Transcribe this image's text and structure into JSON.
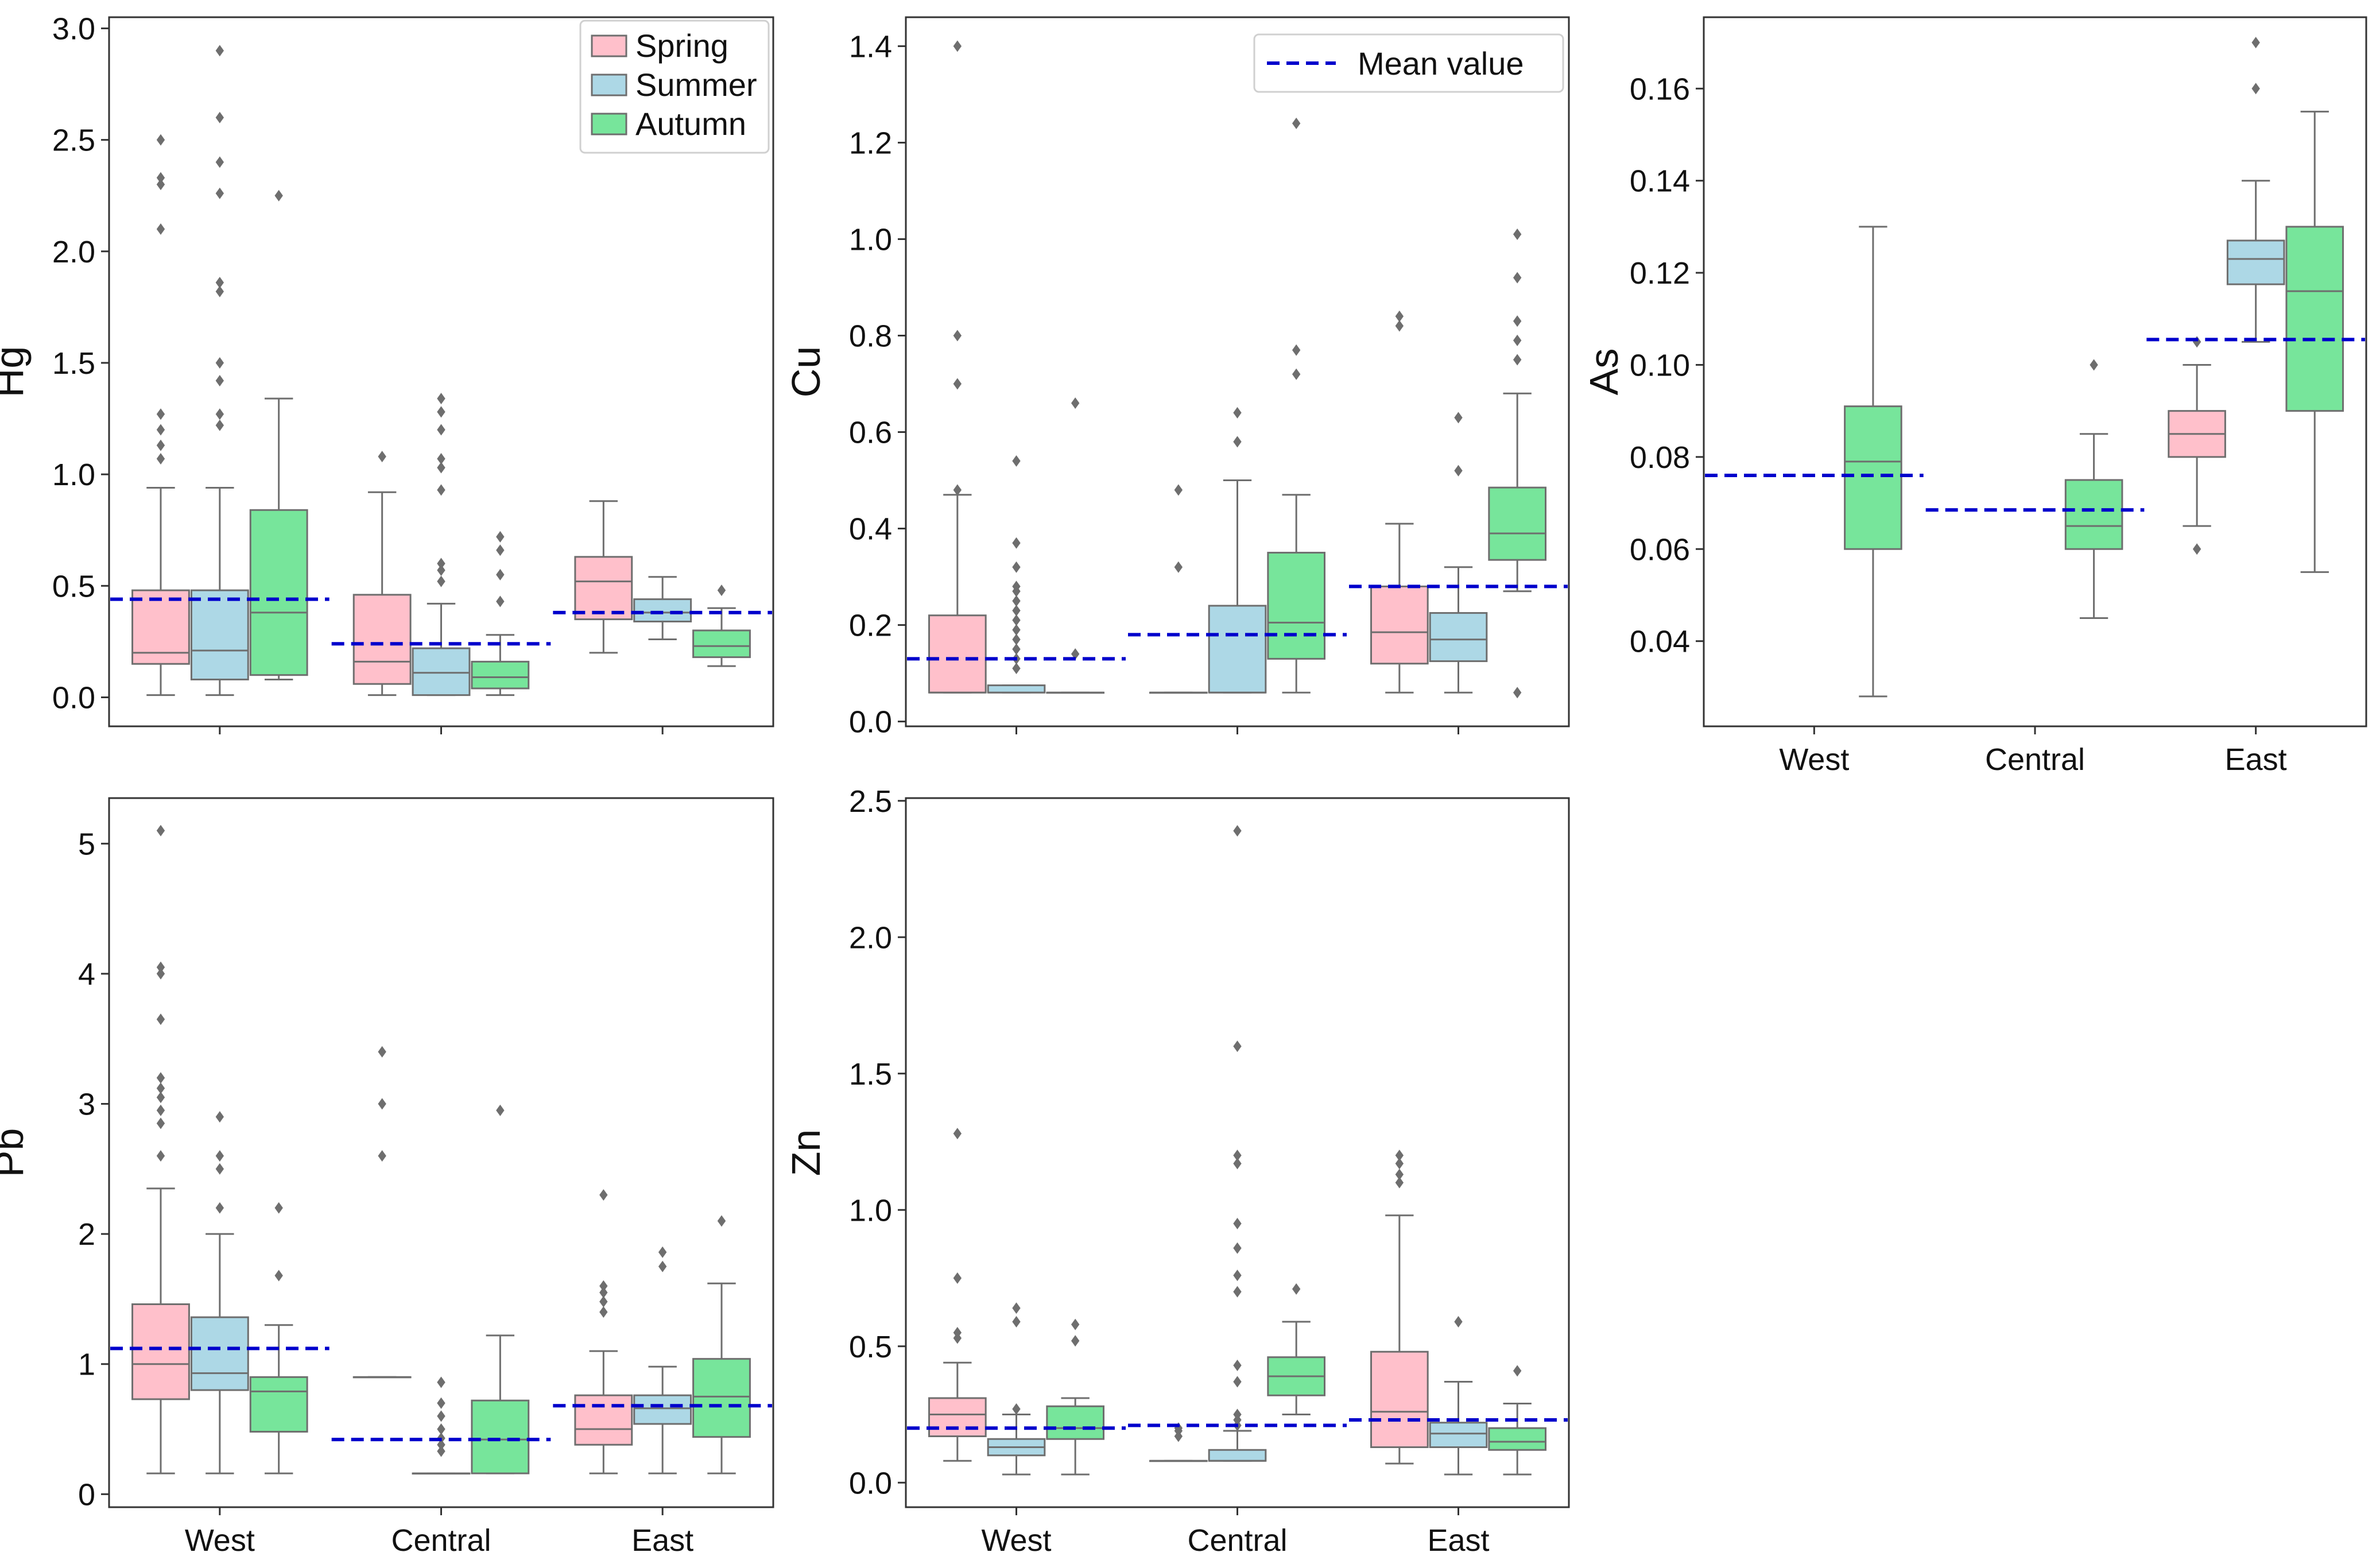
{
  "figure": {
    "legend_seasons": [
      "Spring",
      "Summer",
      "Autumn"
    ],
    "legend_mean": "Mean value",
    "colors": {
      "Spring": "#ffc0cb",
      "Summer": "#add8e6",
      "Autumn": "#77e59b",
      "mean_line": "#0000cc",
      "box_edge": "#6e6e6e",
      "axes": "#333333"
    }
  },
  "chart_data": [
    {
      "type": "box",
      "ylabel": "Hg",
      "categories": [
        "West",
        "Central",
        "East"
      ],
      "show_xticklabels": false,
      "ylim": [
        -0.13,
        3.05
      ],
      "yticks": [
        0.0,
        0.5,
        1.0,
        1.5,
        2.0,
        2.5,
        3.0
      ],
      "ytick_labels": [
        "0.0",
        "0.5",
        "1.0",
        "1.5",
        "2.0",
        "2.5",
        "3.0"
      ],
      "legend": "seasons",
      "boxes": [
        {
          "category": "West",
          "season": "Spring",
          "whislo": 0.01,
          "q1": 0.15,
          "med": 0.2,
          "q3": 0.48,
          "whishi": 0.94,
          "fliers": [
            1.07,
            1.13,
            1.2,
            1.27,
            2.1,
            2.3,
            2.33,
            2.5
          ]
        },
        {
          "category": "West",
          "season": "Summer",
          "whislo": 0.01,
          "q1": 0.08,
          "med": 0.21,
          "q3": 0.48,
          "whishi": 0.94,
          "fliers": [
            1.22,
            1.27,
            1.42,
            1.5,
            1.82,
            1.86,
            2.26,
            2.4,
            2.6,
            2.9
          ]
        },
        {
          "category": "West",
          "season": "Autumn",
          "whislo": 0.08,
          "q1": 0.1,
          "med": 0.38,
          "q3": 0.84,
          "whishi": 1.34,
          "fliers": [
            2.25
          ]
        },
        {
          "category": "Central",
          "season": "Spring",
          "whislo": 0.01,
          "q1": 0.06,
          "med": 0.16,
          "q3": 0.46,
          "whishi": 0.92,
          "fliers": [
            1.08
          ]
        },
        {
          "category": "Central",
          "season": "Summer",
          "whislo": 0.01,
          "q1": 0.01,
          "med": 0.11,
          "q3": 0.22,
          "whishi": 0.42,
          "fliers": [
            0.52,
            0.57,
            0.6,
            0.93,
            1.03,
            1.07,
            1.2,
            1.28,
            1.34
          ]
        },
        {
          "category": "Central",
          "season": "Autumn",
          "whislo": 0.01,
          "q1": 0.04,
          "med": 0.09,
          "q3": 0.16,
          "whishi": 0.28,
          "fliers": [
            0.43,
            0.55,
            0.66,
            0.72
          ]
        },
        {
          "category": "East",
          "season": "Spring",
          "whislo": 0.2,
          "q1": 0.35,
          "med": 0.52,
          "q3": 0.63,
          "whishi": 0.88,
          "fliers": []
        },
        {
          "category": "East",
          "season": "Summer",
          "whislo": 0.26,
          "q1": 0.34,
          "med": 0.38,
          "q3": 0.44,
          "whishi": 0.54,
          "fliers": []
        },
        {
          "category": "East",
          "season": "Autumn",
          "whislo": 0.14,
          "q1": 0.18,
          "med": 0.23,
          "q3": 0.3,
          "whishi": 0.4,
          "fliers": [
            0.48
          ]
        }
      ],
      "means": [
        {
          "category": "West",
          "value": 0.44
        },
        {
          "category": "Central",
          "value": 0.24
        },
        {
          "category": "East",
          "value": 0.38
        }
      ]
    },
    {
      "type": "box",
      "ylabel": "Cu",
      "categories": [
        "West",
        "Central",
        "East"
      ],
      "show_xticklabels": false,
      "ylim": [
        -0.01,
        1.46
      ],
      "yticks": [
        0.0,
        0.2,
        0.4,
        0.6,
        0.8,
        1.0,
        1.2,
        1.4
      ],
      "ytick_labels": [
        "0.0",
        "0.2",
        "0.4",
        "0.6",
        "0.8",
        "1.0",
        "1.2",
        "1.4"
      ],
      "legend": "mean",
      "boxes": [
        {
          "category": "West",
          "season": "Spring",
          "whislo": 0.06,
          "q1": 0.06,
          "med": 0.06,
          "q3": 0.22,
          "whishi": 0.47,
          "fliers": [
            0.48,
            0.7,
            0.8,
            1.4
          ]
        },
        {
          "category": "West",
          "season": "Summer",
          "whislo": 0.06,
          "q1": 0.06,
          "med": 0.06,
          "q3": 0.075,
          "whishi": 0.075,
          "fliers": [
            0.11,
            0.13,
            0.15,
            0.17,
            0.19,
            0.21,
            0.23,
            0.25,
            0.27,
            0.28,
            0.32,
            0.37,
            0.54
          ]
        },
        {
          "category": "West",
          "season": "Autumn",
          "whislo": 0.06,
          "q1": 0.06,
          "med": 0.06,
          "q3": 0.06,
          "whishi": 0.06,
          "fliers": [
            0.14,
            0.66
          ]
        },
        {
          "category": "Central",
          "season": "Spring",
          "whislo": 0.06,
          "q1": 0.06,
          "med": 0.06,
          "q3": 0.06,
          "whishi": 0.06,
          "fliers": [
            0.32,
            0.48
          ]
        },
        {
          "category": "Central",
          "season": "Summer",
          "whislo": 0.06,
          "q1": 0.06,
          "med": 0.06,
          "q3": 0.24,
          "whishi": 0.5,
          "fliers": [
            0.58,
            0.64
          ]
        },
        {
          "category": "Central",
          "season": "Autumn",
          "whislo": 0.06,
          "q1": 0.13,
          "med": 0.205,
          "q3": 0.35,
          "whishi": 0.47,
          "fliers": [
            0.72,
            0.77,
            1.24
          ]
        },
        {
          "category": "East",
          "season": "Spring",
          "whislo": 0.06,
          "q1": 0.12,
          "med": 0.185,
          "q3": 0.28,
          "whishi": 0.41,
          "fliers": [
            0.82,
            0.84
          ]
        },
        {
          "category": "East",
          "season": "Summer",
          "whislo": 0.06,
          "q1": 0.125,
          "med": 0.17,
          "q3": 0.225,
          "whishi": 0.32,
          "fliers": [
            0.52,
            0.63
          ]
        },
        {
          "category": "East",
          "season": "Autumn",
          "whislo": 0.27,
          "q1": 0.335,
          "med": 0.39,
          "q3": 0.485,
          "whishi": 0.68,
          "fliers": [
            0.06,
            0.75,
            0.79,
            0.83,
            0.92,
            1.01
          ]
        }
      ],
      "means": [
        {
          "category": "West",
          "value": 0.13
        },
        {
          "category": "Central",
          "value": 0.18
        },
        {
          "category": "East",
          "value": 0.28
        }
      ]
    },
    {
      "type": "box",
      "ylabel": "As",
      "categories": [
        "West",
        "Central",
        "East"
      ],
      "show_xticklabels": true,
      "ylim": [
        0.0215,
        0.1755
      ],
      "yticks": [
        0.04,
        0.06,
        0.08,
        0.1,
        0.12,
        0.14,
        0.16
      ],
      "ytick_labels": [
        "0.04",
        "0.06",
        "0.08",
        "0.10",
        "0.12",
        "0.14",
        "0.16"
      ],
      "legend": "none",
      "boxes": [
        {
          "category": "West",
          "season": "Autumn",
          "whislo": 0.028,
          "q1": 0.06,
          "med": 0.079,
          "q3": 0.091,
          "whishi": 0.13,
          "fliers": []
        },
        {
          "category": "Central",
          "season": "Autumn",
          "whislo": 0.045,
          "q1": 0.06,
          "med": 0.065,
          "q3": 0.075,
          "whishi": 0.085,
          "fliers": [
            0.1
          ]
        },
        {
          "category": "East",
          "season": "Spring",
          "whislo": 0.065,
          "q1": 0.08,
          "med": 0.085,
          "q3": 0.09,
          "whishi": 0.1,
          "fliers": [
            0.06,
            0.105
          ]
        },
        {
          "category": "East",
          "season": "Summer",
          "whislo": 0.105,
          "q1": 0.1175,
          "med": 0.123,
          "q3": 0.127,
          "whishi": 0.14,
          "fliers": [
            0.16,
            0.17
          ]
        },
        {
          "category": "East",
          "season": "Autumn",
          "whislo": 0.055,
          "q1": 0.09,
          "med": 0.116,
          "q3": 0.13,
          "whishi": 0.155,
          "fliers": []
        }
      ],
      "means": [
        {
          "category": "West",
          "value": 0.076
        },
        {
          "category": "Central",
          "value": 0.0685
        },
        {
          "category": "East",
          "value": 0.1055
        }
      ]
    },
    {
      "type": "box",
      "ylabel": "Pb",
      "categories": [
        "West",
        "Central",
        "East"
      ],
      "show_xticklabels": true,
      "ylim": [
        -0.1,
        5.35
      ],
      "yticks": [
        0,
        1,
        2,
        3,
        4,
        5
      ],
      "ytick_labels": [
        "0",
        "1",
        "2",
        "3",
        "4",
        "5"
      ],
      "legend": "none",
      "boxes": [
        {
          "category": "West",
          "season": "Spring",
          "whislo": 0.16,
          "q1": 0.73,
          "med": 1.0,
          "q3": 1.46,
          "whishi": 2.35,
          "fliers": [
            2.6,
            2.85,
            2.95,
            3.05,
            3.12,
            3.2,
            3.65,
            4.0,
            4.05,
            5.1
          ]
        },
        {
          "category": "West",
          "season": "Summer",
          "whislo": 0.16,
          "q1": 0.8,
          "med": 0.93,
          "q3": 1.36,
          "whishi": 2.0,
          "fliers": [
            2.2,
            2.5,
            2.6,
            2.9
          ]
        },
        {
          "category": "West",
          "season": "Autumn",
          "whislo": 0.16,
          "q1": 0.48,
          "med": 0.79,
          "q3": 0.9,
          "whishi": 1.3,
          "fliers": [
            1.68,
            2.2
          ]
        },
        {
          "category": "Central",
          "season": "Spring",
          "whislo": 0.9,
          "q1": 0.9,
          "med": 0.9,
          "q3": 0.9,
          "whishi": 0.9,
          "fliers": [
            2.6,
            3.0,
            3.4
          ]
        },
        {
          "category": "Central",
          "season": "Summer",
          "whislo": 0.16,
          "q1": 0.16,
          "med": 0.16,
          "q3": 0.16,
          "whishi": 0.16,
          "fliers": [
            0.33,
            0.38,
            0.43,
            0.5,
            0.6,
            0.7,
            0.86
          ]
        },
        {
          "category": "Central",
          "season": "Autumn",
          "whislo": 0.16,
          "q1": 0.16,
          "med": 0.42,
          "q3": 0.72,
          "whishi": 1.22,
          "fliers": [
            2.95
          ]
        },
        {
          "category": "East",
          "season": "Spring",
          "whislo": 0.16,
          "q1": 0.38,
          "med": 0.5,
          "q3": 0.76,
          "whishi": 1.1,
          "fliers": [
            1.4,
            1.48,
            1.55,
            1.6,
            2.3
          ]
        },
        {
          "category": "East",
          "season": "Summer",
          "whislo": 0.16,
          "q1": 0.54,
          "med": 0.66,
          "q3": 0.76,
          "whishi": 0.98,
          "fliers": [
            1.75,
            1.86
          ]
        },
        {
          "category": "East",
          "season": "Autumn",
          "whislo": 0.16,
          "q1": 0.44,
          "med": 0.75,
          "q3": 1.04,
          "whishi": 1.62,
          "fliers": [
            2.1
          ]
        }
      ],
      "means": [
        {
          "category": "West",
          "value": 1.12
        },
        {
          "category": "Central",
          "value": 0.42
        },
        {
          "category": "East",
          "value": 0.68
        }
      ]
    },
    {
      "type": "box",
      "ylabel": "Zn",
      "categories": [
        "West",
        "Central",
        "East"
      ],
      "show_xticklabels": true,
      "ylim": [
        -0.09,
        2.51
      ],
      "yticks": [
        0.0,
        0.5,
        1.0,
        1.5,
        2.0,
        2.5
      ],
      "ytick_labels": [
        "0.0",
        "0.5",
        "1.0",
        "1.5",
        "2.0",
        "2.5"
      ],
      "legend": "none",
      "boxes": [
        {
          "category": "West",
          "season": "Spring",
          "whislo": 0.08,
          "q1": 0.17,
          "med": 0.25,
          "q3": 0.31,
          "whishi": 0.44,
          "fliers": [
            0.53,
            0.55,
            0.75,
            1.28
          ]
        },
        {
          "category": "West",
          "season": "Summer",
          "whislo": 0.03,
          "q1": 0.1,
          "med": 0.13,
          "q3": 0.16,
          "whishi": 0.25,
          "fliers": [
            0.27,
            0.59,
            0.64
          ]
        },
        {
          "category": "West",
          "season": "Autumn",
          "whislo": 0.03,
          "q1": 0.16,
          "med": 0.2,
          "q3": 0.28,
          "whishi": 0.31,
          "fliers": [
            0.52,
            0.58
          ]
        },
        {
          "category": "Central",
          "season": "Spring",
          "whislo": 0.08,
          "q1": 0.08,
          "med": 0.08,
          "q3": 0.08,
          "whishi": 0.08,
          "fliers": [
            0.17,
            0.19,
            0.2
          ]
        },
        {
          "category": "Central",
          "season": "Summer",
          "whislo": 0.08,
          "q1": 0.08,
          "med": 0.08,
          "q3": 0.12,
          "whishi": 0.19,
          "fliers": [
            0.21,
            0.23,
            0.25,
            0.37,
            0.43,
            0.7,
            0.76,
            0.86,
            0.95,
            1.17,
            1.2,
            1.6,
            2.39
          ]
        },
        {
          "category": "Central",
          "season": "Autumn",
          "whislo": 0.25,
          "q1": 0.32,
          "med": 0.39,
          "q3": 0.46,
          "whishi": 0.59,
          "fliers": [
            0.71
          ]
        },
        {
          "category": "East",
          "season": "Spring",
          "whislo": 0.07,
          "q1": 0.13,
          "med": 0.26,
          "q3": 0.48,
          "whishi": 0.98,
          "fliers": [
            1.1,
            1.13,
            1.17,
            1.2
          ]
        },
        {
          "category": "East",
          "season": "Summer",
          "whislo": 0.03,
          "q1": 0.13,
          "med": 0.18,
          "q3": 0.22,
          "whishi": 0.37,
          "fliers": [
            0.59
          ]
        },
        {
          "category": "East",
          "season": "Autumn",
          "whislo": 0.03,
          "q1": 0.12,
          "med": 0.15,
          "q3": 0.2,
          "whishi": 0.29,
          "fliers": [
            0.41
          ]
        }
      ],
      "means": [
        {
          "category": "West",
          "value": 0.2
        },
        {
          "category": "Central",
          "value": 0.21
        },
        {
          "category": "East",
          "value": 0.23
        }
      ]
    }
  ]
}
